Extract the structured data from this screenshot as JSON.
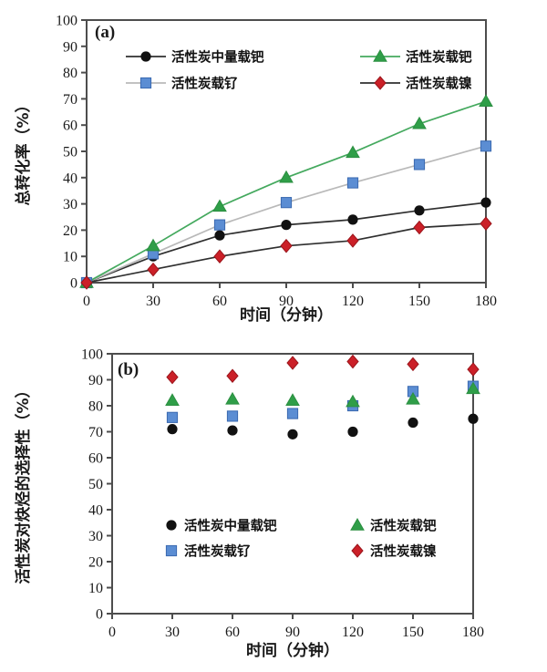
{
  "page": {
    "background": "#ffffff"
  },
  "colors": {
    "axis": "#4d4d4d",
    "black_series": "#111111",
    "blue_series": "#5b8dd3",
    "green_series": "#2f9e48",
    "red_series": "#cb2028",
    "gray_line": "#b9b9b9",
    "dark_line": "#2f2f2f"
  },
  "chart_data": [
    {
      "type": "line",
      "panel_label": "(a)",
      "xlabel": "时间（分钟）",
      "ylabel": "总转化率（%）",
      "xlim": [
        0,
        180
      ],
      "ylim": [
        0,
        100
      ],
      "xticks": [
        0,
        30,
        60,
        90,
        120,
        150,
        180
      ],
      "ytick_step": 10,
      "grid": false,
      "show_lines": true,
      "legend_position": "top-inside",
      "x": [
        0,
        30,
        60,
        90,
        120,
        150,
        180
      ],
      "series": [
        {
          "name": "活性炭中量载钯",
          "marker": "circle",
          "color": "#111111",
          "edge": "#111111",
          "line_color": "#2f2f2f",
          "values": [
            0,
            10,
            18,
            22,
            24,
            27.5,
            30.5
          ]
        },
        {
          "name": "活性炭载钌",
          "marker": "square",
          "color": "#5b8dd3",
          "edge": "#3a69b0",
          "line_color": "#b9b9b9",
          "values": [
            0,
            11,
            22,
            30.5,
            38,
            45,
            52
          ]
        },
        {
          "name": "活性炭载钯",
          "marker": "triangle",
          "color": "#2f9e48",
          "edge": "#2b8f41",
          "line_color": "#44a95e",
          "values": [
            0,
            14,
            29,
            40,
            49.5,
            60.5,
            69
          ]
        },
        {
          "name": "活性炭载镍",
          "marker": "diamond",
          "color": "#cb2028",
          "edge": "#9a151b",
          "line_color": "#2f2f2f",
          "values": [
            0,
            5,
            10,
            14,
            16,
            21,
            22.5
          ]
        }
      ],
      "legend_columns": [
        [
          0,
          1
        ],
        [
          2,
          3
        ]
      ]
    },
    {
      "type": "scatter",
      "panel_label": "(b)",
      "xlabel": "时间（分钟）",
      "ylabel": "活性炭对炔烃的选择性（%）",
      "xlim": [
        0,
        180
      ],
      "ylim": [
        0,
        100
      ],
      "xticks": [
        0,
        30,
        60,
        90,
        120,
        150,
        180
      ],
      "ytick_step": 10,
      "grid": false,
      "show_lines": false,
      "legend_position": "bottom-inside",
      "x": [
        30,
        60,
        90,
        120,
        150,
        180
      ],
      "series": [
        {
          "name": "活性炭中量载钯",
          "marker": "circle",
          "color": "#111111",
          "edge": "#111111",
          "values": [
            71,
            70.5,
            69,
            70,
            73.5,
            75
          ]
        },
        {
          "name": "活性炭载钌",
          "marker": "square",
          "color": "#5b8dd3",
          "edge": "#3a69b0",
          "values": [
            75.5,
            76,
            77,
            80,
            85.5,
            87.5
          ]
        },
        {
          "name": "活性炭载钯",
          "marker": "triangle",
          "color": "#2f9e48",
          "edge": "#2b8f41",
          "values": [
            82,
            82.5,
            82,
            81.5,
            82.5,
            86.5
          ]
        },
        {
          "name": "活性炭载镍",
          "marker": "diamond",
          "color": "#cb2028",
          "edge": "#9a151b",
          "values": [
            91,
            91.5,
            96.5,
            97,
            96,
            94
          ]
        }
      ],
      "legend_columns": [
        [
          0,
          1
        ],
        [
          2,
          3
        ]
      ]
    }
  ]
}
